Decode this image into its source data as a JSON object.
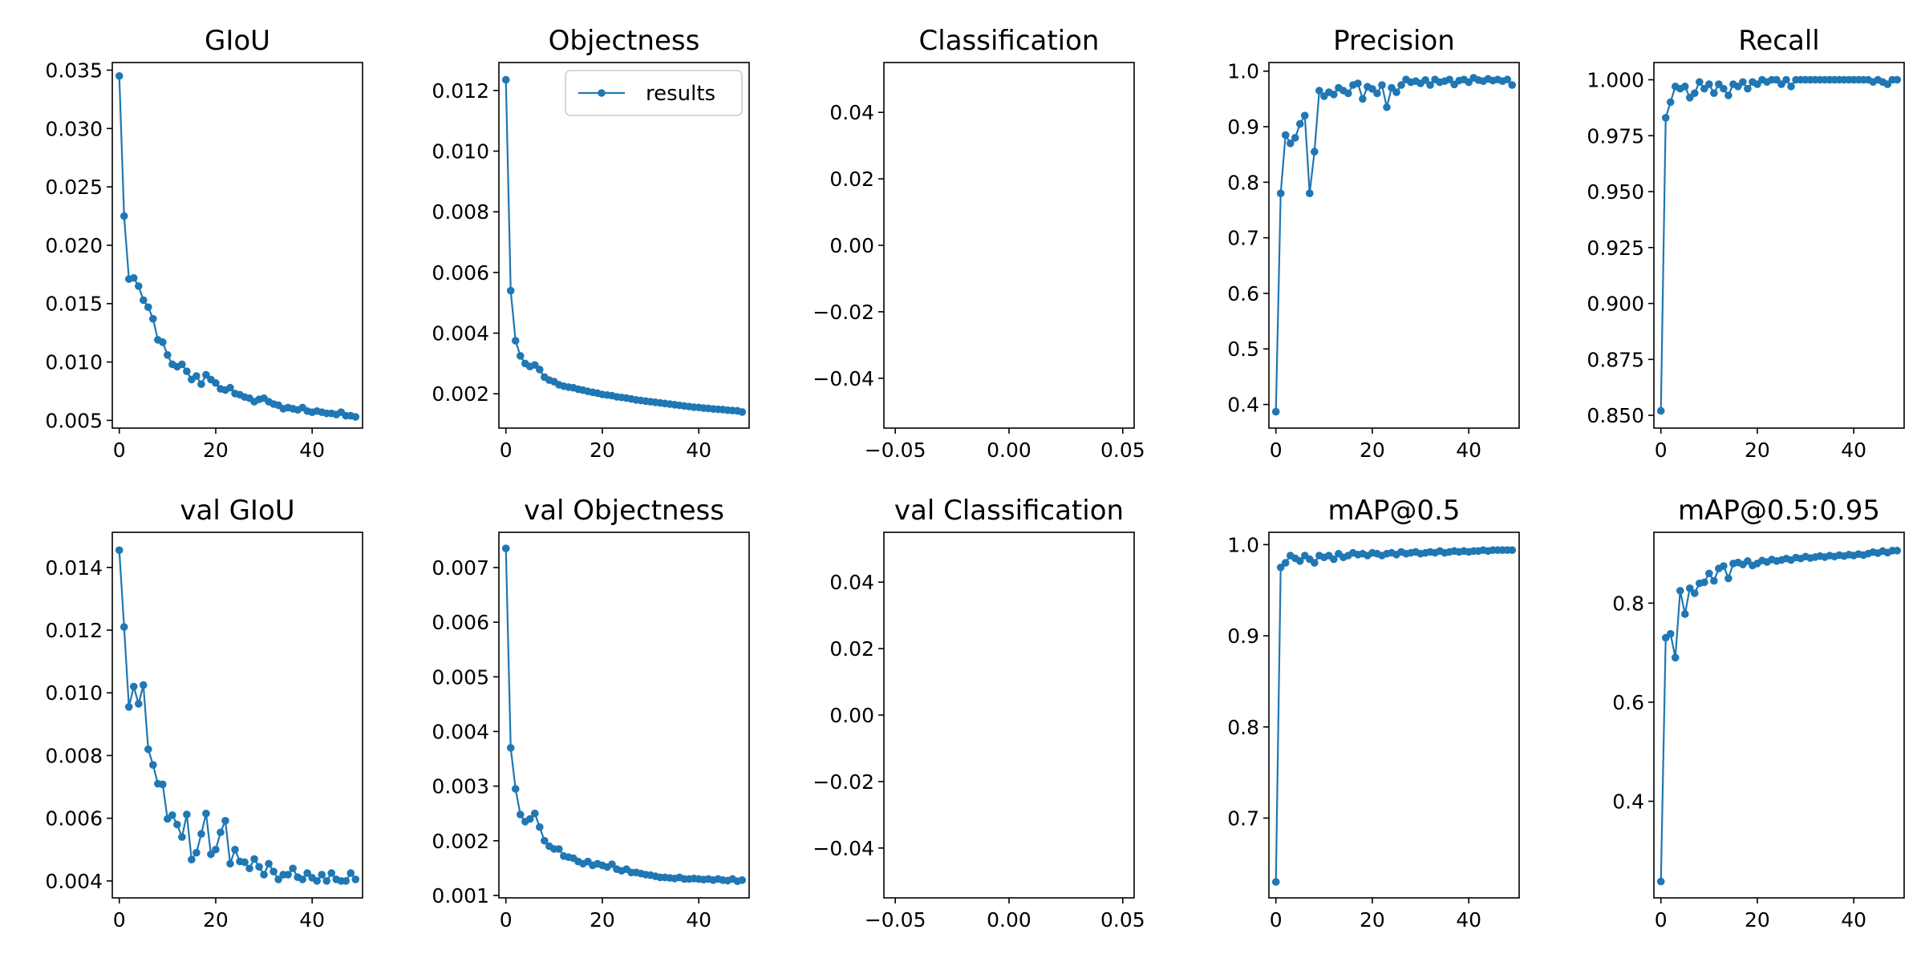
{
  "figure": {
    "series_color": "#1f77b4",
    "legend_label": "results",
    "legend_location": "top-right",
    "legend_panel_index": 1
  },
  "chart_data": [
    {
      "type": "line",
      "title": "GIoU",
      "x_start": 0,
      "xlim": [
        -1.45,
        50.45
      ],
      "ylim": [
        0.00434,
        0.03565
      ],
      "xticks": [
        0,
        20,
        40
      ],
      "xtick_labels": [
        "0",
        "20",
        "40"
      ],
      "yticks": [
        0.005,
        0.01,
        0.015,
        0.02,
        0.025,
        0.03,
        0.035
      ],
      "ytick_labels": [
        "0.005",
        "0.010",
        "0.015",
        "0.020",
        "0.025",
        "0.030",
        "0.035"
      ],
      "values": [
        0.0345,
        0.0225,
        0.0171,
        0.0172,
        0.0165,
        0.0153,
        0.0147,
        0.0137,
        0.0119,
        0.0117,
        0.0106,
        0.0098,
        0.0096,
        0.0098,
        0.0092,
        0.0085,
        0.0088,
        0.0081,
        0.0089,
        0.0085,
        0.0082,
        0.0077,
        0.0076,
        0.0078,
        0.0073,
        0.0072,
        0.007,
        0.0069,
        0.0066,
        0.0068,
        0.0069,
        0.0066,
        0.0064,
        0.0063,
        0.006,
        0.0061,
        0.006,
        0.0059,
        0.0061,
        0.0058,
        0.0057,
        0.0058,
        0.0057,
        0.0056,
        0.0056,
        0.0055,
        0.0057,
        0.0054,
        0.0054,
        0.0053
      ]
    },
    {
      "type": "line",
      "title": "Objectness",
      "x_start": 0,
      "xlim": [
        -1.45,
        50.45
      ],
      "ylim": [
        0.00087,
        0.01292
      ],
      "xticks": [
        0,
        20,
        40
      ],
      "xtick_labels": [
        "0",
        "20",
        "40"
      ],
      "yticks": [
        0.002,
        0.004,
        0.006,
        0.008,
        0.01,
        0.012
      ],
      "ytick_labels": [
        "0.002",
        "0.004",
        "0.006",
        "0.008",
        "0.010",
        "0.012"
      ],
      "values": [
        0.01235,
        0.0054,
        0.00375,
        0.00325,
        0.003,
        0.0029,
        0.00295,
        0.0028,
        0.00255,
        0.00245,
        0.0024,
        0.0023,
        0.00225,
        0.00222,
        0.0022,
        0.00215,
        0.00212,
        0.00208,
        0.00205,
        0.00202,
        0.00198,
        0.00196,
        0.00194,
        0.0019,
        0.00188,
        0.00186,
        0.00183,
        0.0018,
        0.00178,
        0.00176,
        0.00174,
        0.00172,
        0.0017,
        0.00168,
        0.00166,
        0.00164,
        0.00162,
        0.0016,
        0.00158,
        0.00156,
        0.00155,
        0.00153,
        0.00152,
        0.0015,
        0.00149,
        0.00148,
        0.00146,
        0.00145,
        0.00144,
        0.0014
      ]
    },
    {
      "type": "line",
      "title": "Classification",
      "x_start": 0,
      "xlim": [
        -0.055,
        0.055
      ],
      "ylim": [
        -0.055,
        0.055
      ],
      "xticks": [
        -0.05,
        0,
        0.05
      ],
      "xtick_labels": [
        "−0.05",
        "0.00",
        "0.05"
      ],
      "yticks": [
        -0.04,
        -0.02,
        0,
        0.02,
        0.04
      ],
      "ytick_labels": [
        "−0.04",
        "−0.02",
        "0.00",
        "0.02",
        "0.04"
      ],
      "values": []
    },
    {
      "type": "line",
      "title": "Precision",
      "x_start": 0,
      "xlim": [
        -1.45,
        50.45
      ],
      "ylim": [
        0.3575,
        1.0155
      ],
      "xticks": [
        0,
        20,
        40
      ],
      "xtick_labels": [
        "0",
        "20",
        "40"
      ],
      "yticks": [
        0.4,
        0.5,
        0.6,
        0.7,
        0.8,
        0.9,
        1.0
      ],
      "ytick_labels": [
        "0.4",
        "0.5",
        "0.6",
        "0.7",
        "0.8",
        "0.9",
        "1.0"
      ],
      "values": [
        0.387,
        0.78,
        0.885,
        0.87,
        0.88,
        0.905,
        0.92,
        0.78,
        0.855,
        0.965,
        0.955,
        0.962,
        0.958,
        0.97,
        0.965,
        0.96,
        0.975,
        0.978,
        0.95,
        0.972,
        0.968,
        0.96,
        0.975,
        0.935,
        0.97,
        0.962,
        0.975,
        0.985,
        0.98,
        0.982,
        0.978,
        0.984,
        0.975,
        0.985,
        0.98,
        0.982,
        0.985,
        0.976,
        0.983,
        0.985,
        0.98,
        0.988,
        0.984,
        0.982,
        0.986,
        0.983,
        0.985,
        0.982,
        0.985,
        0.975
      ]
    },
    {
      "type": "line",
      "title": "Recall",
      "x_start": 0,
      "xlim": [
        -1.45,
        50.45
      ],
      "ylim": [
        0.8443,
        1.0077
      ],
      "xticks": [
        0,
        20,
        40
      ],
      "xtick_labels": [
        "0",
        "20",
        "40"
      ],
      "yticks": [
        0.85,
        0.875,
        0.9,
        0.925,
        0.95,
        0.975,
        1.0
      ],
      "ytick_labels": [
        "0.850",
        "0.875",
        "0.900",
        "0.925",
        "0.950",
        "0.975",
        "1.000"
      ],
      "values": [
        0.852,
        0.983,
        0.99,
        0.997,
        0.996,
        0.997,
        0.992,
        0.994,
        0.999,
        0.996,
        0.998,
        0.994,
        0.998,
        0.996,
        0.993,
        0.998,
        0.997,
        0.999,
        0.996,
        0.999,
        0.998,
        1.0,
        0.999,
        1.0,
        1.0,
        0.998,
        1.0,
        0.997,
        1.0,
        1.0,
        1.0,
        1.0,
        1.0,
        1.0,
        1.0,
        1.0,
        1.0,
        1.0,
        1.0,
        1.0,
        1.0,
        1.0,
        1.0,
        1.0,
        0.999,
        1.0,
        0.999,
        0.998,
        1.0,
        1.0
      ]
    },
    {
      "type": "line",
      "title": "val GIoU",
      "x_start": 0,
      "xlim": [
        -1.45,
        50.45
      ],
      "ylim": [
        0.00346,
        0.01512
      ],
      "xticks": [
        0,
        20,
        40
      ],
      "xtick_labels": [
        "0",
        "20",
        "40"
      ],
      "yticks": [
        0.004,
        0.006,
        0.008,
        0.01,
        0.012,
        0.014
      ],
      "ytick_labels": [
        "0.004",
        "0.006",
        "0.008",
        "0.010",
        "0.012",
        "0.014"
      ],
      "values": [
        0.01455,
        0.0121,
        0.00955,
        0.0102,
        0.00965,
        0.01025,
        0.0082,
        0.0077,
        0.0071,
        0.00708,
        0.00598,
        0.0061,
        0.0058,
        0.0054,
        0.00612,
        0.00468,
        0.0049,
        0.0055,
        0.00615,
        0.00485,
        0.005,
        0.00555,
        0.00592,
        0.00455,
        0.005,
        0.00462,
        0.0046,
        0.0044,
        0.0047,
        0.00445,
        0.0042,
        0.00455,
        0.0043,
        0.00405,
        0.0042,
        0.0042,
        0.0044,
        0.00412,
        0.00405,
        0.00425,
        0.0041,
        0.004,
        0.0042,
        0.004,
        0.00425,
        0.00405,
        0.004,
        0.004,
        0.00425,
        0.00405
      ]
    },
    {
      "type": "line",
      "title": "val Objectness",
      "x_start": 0,
      "xlim": [
        -1.45,
        50.45
      ],
      "ylim": [
        0.000955,
        0.007645
      ],
      "xticks": [
        0,
        20,
        40
      ],
      "xtick_labels": [
        "0",
        "20",
        "40"
      ],
      "yticks": [
        0.001,
        0.002,
        0.003,
        0.004,
        0.005,
        0.006,
        0.007
      ],
      "ytick_labels": [
        "0.001",
        "0.002",
        "0.003",
        "0.004",
        "0.005",
        "0.006",
        "0.007"
      ],
      "values": [
        0.00735,
        0.0037,
        0.00295,
        0.00248,
        0.00235,
        0.0024,
        0.0025,
        0.00225,
        0.002,
        0.0019,
        0.00185,
        0.00185,
        0.00172,
        0.0017,
        0.00168,
        0.00162,
        0.00158,
        0.00162,
        0.00155,
        0.00158,
        0.00155,
        0.00152,
        0.00157,
        0.00148,
        0.00145,
        0.00148,
        0.00142,
        0.00142,
        0.0014,
        0.00138,
        0.00137,
        0.00135,
        0.00133,
        0.00133,
        0.00132,
        0.00131,
        0.00133,
        0.0013,
        0.0013,
        0.00131,
        0.0013,
        0.00129,
        0.0013,
        0.00128,
        0.0013,
        0.00128,
        0.00127,
        0.0013,
        0.00126,
        0.00128
      ]
    },
    {
      "type": "line",
      "title": "val Classification",
      "x_start": 0,
      "xlim": [
        -0.055,
        0.055
      ],
      "ylim": [
        -0.055,
        0.055
      ],
      "xticks": [
        -0.05,
        0,
        0.05
      ],
      "xtick_labels": [
        "−0.05",
        "0.00",
        "0.05"
      ],
      "yticks": [
        -0.04,
        -0.02,
        0,
        0.02,
        0.04
      ],
      "ytick_labels": [
        "−0.04",
        "−0.02",
        "0.00",
        "0.02",
        "0.04"
      ],
      "values": []
    },
    {
      "type": "line",
      "title": "mAP@0.5",
      "x_start": 0,
      "xlim": [
        -1.45,
        50.45
      ],
      "ylim": [
        0.6125,
        1.0135
      ],
      "xticks": [
        0,
        20,
        40
      ],
      "xtick_labels": [
        "0",
        "20",
        "40"
      ],
      "yticks": [
        0.7,
        0.8,
        0.9,
        1.0
      ],
      "ytick_labels": [
        "0.7",
        "0.8",
        "0.9",
        "1.0"
      ],
      "values": [
        0.63,
        0.975,
        0.98,
        0.988,
        0.985,
        0.982,
        0.988,
        0.984,
        0.98,
        0.988,
        0.986,
        0.988,
        0.984,
        0.99,
        0.986,
        0.988,
        0.991,
        0.989,
        0.99,
        0.988,
        0.991,
        0.99,
        0.988,
        0.99,
        0.991,
        0.989,
        0.992,
        0.99,
        0.991,
        0.992,
        0.99,
        0.991,
        0.992,
        0.991,
        0.993,
        0.991,
        0.992,
        0.993,
        0.992,
        0.993,
        0.992,
        0.993,
        0.993,
        0.994,
        0.993,
        0.994,
        0.994,
        0.994,
        0.994,
        0.994
      ]
    },
    {
      "type": "line",
      "title": "mAP@0.5:0.95",
      "x_start": 0,
      "xlim": [
        -1.45,
        50.45
      ],
      "ylim": [
        0.205,
        0.943
      ],
      "xticks": [
        0,
        20,
        40
      ],
      "xtick_labels": [
        "0",
        "20",
        "40"
      ],
      "yticks": [
        0.4,
        0.6,
        0.8
      ],
      "ytick_labels": [
        "0.4",
        "0.6",
        "0.8"
      ],
      "values": [
        0.238,
        0.73,
        0.738,
        0.69,
        0.825,
        0.778,
        0.83,
        0.82,
        0.84,
        0.842,
        0.86,
        0.845,
        0.87,
        0.875,
        0.85,
        0.88,
        0.882,
        0.878,
        0.885,
        0.876,
        0.88,
        0.886,
        0.883,
        0.888,
        0.885,
        0.887,
        0.89,
        0.887,
        0.892,
        0.89,
        0.894,
        0.891,
        0.893,
        0.895,
        0.893,
        0.896,
        0.894,
        0.897,
        0.895,
        0.898,
        0.896,
        0.899,
        0.897,
        0.9,
        0.903,
        0.901,
        0.905,
        0.902,
        0.906,
        0.906
      ]
    }
  ]
}
